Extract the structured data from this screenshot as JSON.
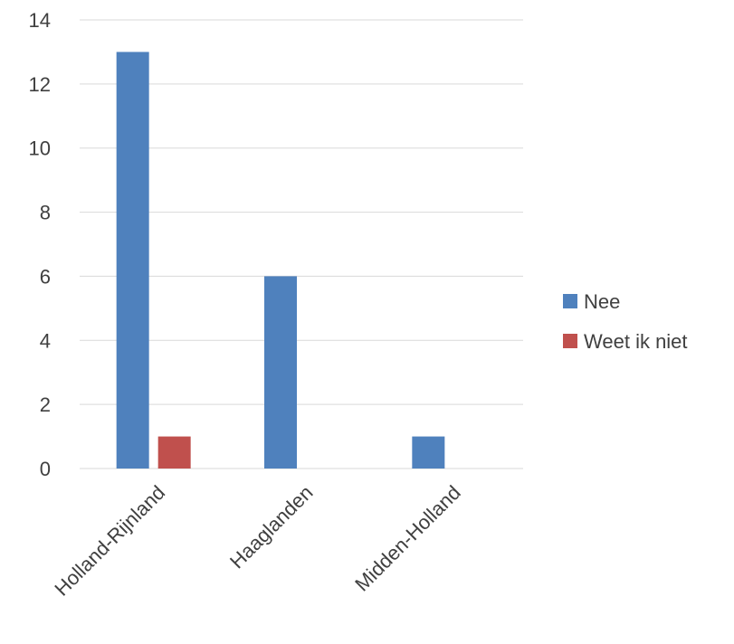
{
  "chart_data": {
    "type": "bar",
    "categories": [
      "Holland-Rijnland",
      "Haaglanden",
      "Midden-Holland"
    ],
    "series": [
      {
        "name": "Nee",
        "color": "#4f81bd",
        "values": [
          13,
          6,
          1
        ]
      },
      {
        "name": "Weet ik niet",
        "color": "#c0504d",
        "values": [
          1,
          0,
          0
        ]
      }
    ],
    "ylim": [
      0,
      14
    ],
    "yticks": [
      0,
      2,
      4,
      6,
      8,
      10,
      12,
      14
    ],
    "grid": true,
    "legend_position": "right"
  }
}
